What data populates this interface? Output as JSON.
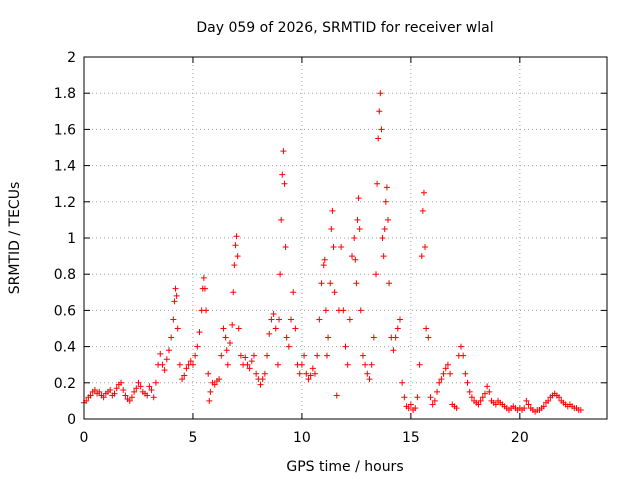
{
  "chart_data": {
    "type": "scatter",
    "title": "Day 059 of 2026, SRMTID for receiver wlal",
    "xlabel": "GPS time / hours",
    "ylabel": "SRMTID / TECUs",
    "xlim": [
      0,
      24
    ],
    "ylim": [
      0,
      2
    ],
    "xticks": [
      0,
      5,
      10,
      15,
      20
    ],
    "xtick_labels": [
      "0",
      "5",
      "10",
      "15",
      "20"
    ],
    "yticks": [
      0,
      0.2,
      0.4,
      0.6,
      0.8,
      1,
      1.2,
      1.4,
      1.6,
      1.8,
      2
    ],
    "ytick_labels": [
      "0",
      "0.2",
      "0.4",
      "0.6",
      "0.8",
      "1",
      "1.2",
      "1.4",
      "1.6",
      "1.8",
      "2"
    ],
    "grid": true,
    "marker": "+",
    "color": "#ff0000",
    "series": [
      {
        "name": "SRMTID",
        "points": [
          [
            0.0,
            0.09
          ],
          [
            0.1,
            0.1
          ],
          [
            0.2,
            0.12
          ],
          [
            0.3,
            0.13
          ],
          [
            0.4,
            0.15
          ],
          [
            0.5,
            0.16
          ],
          [
            0.6,
            0.14
          ],
          [
            0.7,
            0.15
          ],
          [
            0.8,
            0.13
          ],
          [
            0.9,
            0.12
          ],
          [
            1.0,
            0.14
          ],
          [
            1.1,
            0.15
          ],
          [
            1.2,
            0.16
          ],
          [
            1.3,
            0.13
          ],
          [
            1.4,
            0.14
          ],
          [
            1.5,
            0.17
          ],
          [
            1.6,
            0.19
          ],
          [
            1.7,
            0.2
          ],
          [
            1.8,
            0.16
          ],
          [
            1.9,
            0.13
          ],
          [
            2.0,
            0.11
          ],
          [
            2.1,
            0.1
          ],
          [
            2.2,
            0.12
          ],
          [
            2.3,
            0.15
          ],
          [
            2.4,
            0.17
          ],
          [
            2.5,
            0.2
          ],
          [
            2.6,
            0.18
          ],
          [
            2.7,
            0.15
          ],
          [
            2.8,
            0.14
          ],
          [
            2.9,
            0.13
          ],
          [
            3.0,
            0.18
          ],
          [
            3.1,
            0.16
          ],
          [
            3.2,
            0.12
          ],
          [
            3.3,
            0.2
          ],
          [
            3.4,
            0.3
          ],
          [
            3.5,
            0.36
          ],
          [
            3.6,
            0.3
          ],
          [
            3.7,
            0.27
          ],
          [
            3.8,
            0.33
          ],
          [
            3.9,
            0.38
          ],
          [
            4.0,
            0.45
          ],
          [
            4.1,
            0.55
          ],
          [
            4.15,
            0.65
          ],
          [
            4.2,
            0.72
          ],
          [
            4.25,
            0.68
          ],
          [
            4.3,
            0.5
          ],
          [
            4.4,
            0.3
          ],
          [
            4.5,
            0.22
          ],
          [
            4.6,
            0.24
          ],
          [
            4.7,
            0.28
          ],
          [
            4.8,
            0.3
          ],
          [
            4.9,
            0.32
          ],
          [
            5.0,
            0.3
          ],
          [
            5.1,
            0.35
          ],
          [
            5.2,
            0.4
          ],
          [
            5.3,
            0.48
          ],
          [
            5.4,
            0.6
          ],
          [
            5.45,
            0.72
          ],
          [
            5.5,
            0.78
          ],
          [
            5.55,
            0.72
          ],
          [
            5.6,
            0.6
          ],
          [
            5.7,
            0.25
          ],
          [
            5.75,
            0.1
          ],
          [
            5.8,
            0.15
          ],
          [
            5.9,
            0.2
          ],
          [
            6.0,
            0.19
          ],
          [
            6.1,
            0.21
          ],
          [
            6.2,
            0.22
          ],
          [
            6.3,
            0.35
          ],
          [
            6.4,
            0.5
          ],
          [
            6.5,
            0.45
          ],
          [
            6.55,
            0.38
          ],
          [
            6.6,
            0.3
          ],
          [
            6.7,
            0.42
          ],
          [
            6.8,
            0.52
          ],
          [
            6.85,
            0.7
          ],
          [
            6.9,
            0.85
          ],
          [
            6.95,
            0.96
          ],
          [
            7.0,
            1.01
          ],
          [
            7.05,
            0.9
          ],
          [
            7.1,
            0.5
          ],
          [
            7.2,
            0.35
          ],
          [
            7.3,
            0.3
          ],
          [
            7.4,
            0.34
          ],
          [
            7.5,
            0.3
          ],
          [
            7.6,
            0.28
          ],
          [
            7.7,
            0.32
          ],
          [
            7.8,
            0.35
          ],
          [
            7.9,
            0.25
          ],
          [
            8.0,
            0.22
          ],
          [
            8.1,
            0.19
          ],
          [
            8.2,
            0.22
          ],
          [
            8.3,
            0.25
          ],
          [
            8.4,
            0.35
          ],
          [
            8.5,
            0.47
          ],
          [
            8.6,
            0.55
          ],
          [
            8.7,
            0.58
          ],
          [
            8.8,
            0.5
          ],
          [
            8.9,
            0.3
          ],
          [
            8.95,
            0.55
          ],
          [
            9.0,
            0.8
          ],
          [
            9.05,
            1.1
          ],
          [
            9.1,
            1.35
          ],
          [
            9.15,
            1.48
          ],
          [
            9.2,
            1.3
          ],
          [
            9.25,
            0.95
          ],
          [
            9.3,
            0.45
          ],
          [
            9.4,
            0.4
          ],
          [
            9.5,
            0.55
          ],
          [
            9.6,
            0.7
          ],
          [
            9.7,
            0.5
          ],
          [
            9.8,
            0.3
          ],
          [
            9.9,
            0.25
          ],
          [
            10.0,
            0.3
          ],
          [
            10.1,
            0.35
          ],
          [
            10.2,
            0.25
          ],
          [
            10.3,
            0.22
          ],
          [
            10.4,
            0.24
          ],
          [
            10.5,
            0.28
          ],
          [
            10.6,
            0.25
          ],
          [
            10.7,
            0.35
          ],
          [
            10.8,
            0.55
          ],
          [
            10.9,
            0.75
          ],
          [
            11.0,
            0.85
          ],
          [
            11.05,
            0.88
          ],
          [
            11.1,
            0.6
          ],
          [
            11.15,
            0.35
          ],
          [
            11.2,
            0.45
          ],
          [
            11.3,
            0.75
          ],
          [
            11.35,
            1.05
          ],
          [
            11.4,
            1.15
          ],
          [
            11.45,
            0.95
          ],
          [
            11.5,
            0.7
          ],
          [
            11.6,
            0.13
          ],
          [
            11.7,
            0.6
          ],
          [
            11.8,
            0.95
          ],
          [
            11.9,
            0.6
          ],
          [
            12.0,
            0.4
          ],
          [
            12.1,
            0.3
          ],
          [
            12.2,
            0.55
          ],
          [
            12.3,
            0.9
          ],
          [
            12.4,
            1.0
          ],
          [
            12.45,
            0.88
          ],
          [
            12.5,
            0.75
          ],
          [
            12.55,
            1.1
          ],
          [
            12.6,
            1.22
          ],
          [
            12.65,
            1.05
          ],
          [
            12.7,
            0.6
          ],
          [
            12.8,
            0.35
          ],
          [
            12.9,
            0.3
          ],
          [
            13.0,
            0.25
          ],
          [
            13.1,
            0.22
          ],
          [
            13.2,
            0.3
          ],
          [
            13.3,
            0.45
          ],
          [
            13.4,
            0.8
          ],
          [
            13.45,
            1.3
          ],
          [
            13.5,
            1.55
          ],
          [
            13.55,
            1.7
          ],
          [
            13.6,
            1.8
          ],
          [
            13.65,
            1.6
          ],
          [
            13.7,
            1.0
          ],
          [
            13.75,
            0.9
          ],
          [
            13.8,
            1.05
          ],
          [
            13.85,
            1.2
          ],
          [
            13.9,
            1.28
          ],
          [
            13.95,
            1.1
          ],
          [
            14.0,
            0.75
          ],
          [
            14.1,
            0.45
          ],
          [
            14.2,
            0.38
          ],
          [
            14.3,
            0.45
          ],
          [
            14.4,
            0.5
          ],
          [
            14.5,
            0.55
          ],
          [
            14.6,
            0.2
          ],
          [
            14.7,
            0.12
          ],
          [
            14.8,
            0.07
          ],
          [
            14.9,
            0.06
          ],
          [
            15.0,
            0.08
          ],
          [
            15.1,
            0.05
          ],
          [
            15.2,
            0.06
          ],
          [
            15.3,
            0.12
          ],
          [
            15.4,
            0.3
          ],
          [
            15.5,
            0.9
          ],
          [
            15.55,
            1.15
          ],
          [
            15.6,
            1.25
          ],
          [
            15.65,
            0.95
          ],
          [
            15.7,
            0.5
          ],
          [
            15.8,
            0.45
          ],
          [
            15.9,
            0.12
          ],
          [
            16.0,
            0.08
          ],
          [
            16.1,
            0.1
          ],
          [
            16.2,
            0.15
          ],
          [
            16.3,
            0.2
          ],
          [
            16.4,
            0.22
          ],
          [
            16.5,
            0.25
          ],
          [
            16.6,
            0.28
          ],
          [
            16.7,
            0.3
          ],
          [
            16.8,
            0.25
          ],
          [
            16.9,
            0.08
          ],
          [
            17.0,
            0.07
          ],
          [
            17.1,
            0.06
          ],
          [
            17.2,
            0.35
          ],
          [
            17.3,
            0.4
          ],
          [
            17.4,
            0.35
          ],
          [
            17.5,
            0.25
          ],
          [
            17.6,
            0.2
          ],
          [
            17.7,
            0.15
          ],
          [
            17.8,
            0.12
          ],
          [
            17.9,
            0.1
          ],
          [
            18.0,
            0.09
          ],
          [
            18.1,
            0.08
          ],
          [
            18.2,
            0.1
          ],
          [
            18.3,
            0.12
          ],
          [
            18.4,
            0.14
          ],
          [
            18.5,
            0.18
          ],
          [
            18.6,
            0.15
          ],
          [
            18.7,
            0.1
          ],
          [
            18.8,
            0.09
          ],
          [
            18.9,
            0.08
          ],
          [
            19.0,
            0.1
          ],
          [
            19.1,
            0.09
          ],
          [
            19.2,
            0.08
          ],
          [
            19.3,
            0.07
          ],
          [
            19.4,
            0.06
          ],
          [
            19.5,
            0.05
          ],
          [
            19.6,
            0.06
          ],
          [
            19.7,
            0.07
          ],
          [
            19.8,
            0.06
          ],
          [
            19.9,
            0.05
          ],
          [
            20.0,
            0.06
          ],
          [
            20.1,
            0.05
          ],
          [
            20.2,
            0.06
          ],
          [
            20.3,
            0.1
          ],
          [
            20.4,
            0.08
          ],
          [
            20.5,
            0.06
          ],
          [
            20.6,
            0.05
          ],
          [
            20.7,
            0.04
          ],
          [
            20.8,
            0.05
          ],
          [
            20.9,
            0.05
          ],
          [
            21.0,
            0.06
          ],
          [
            21.1,
            0.07
          ],
          [
            21.2,
            0.09
          ],
          [
            21.3,
            0.1
          ],
          [
            21.4,
            0.12
          ],
          [
            21.5,
            0.13
          ],
          [
            21.6,
            0.14
          ],
          [
            21.7,
            0.13
          ],
          [
            21.8,
            0.12
          ],
          [
            21.9,
            0.1
          ],
          [
            22.0,
            0.09
          ],
          [
            22.1,
            0.08
          ],
          [
            22.2,
            0.07
          ],
          [
            22.3,
            0.08
          ],
          [
            22.4,
            0.07
          ],
          [
            22.5,
            0.06
          ],
          [
            22.6,
            0.06
          ],
          [
            22.7,
            0.05
          ],
          [
            22.8,
            0.05
          ]
        ]
      }
    ]
  }
}
